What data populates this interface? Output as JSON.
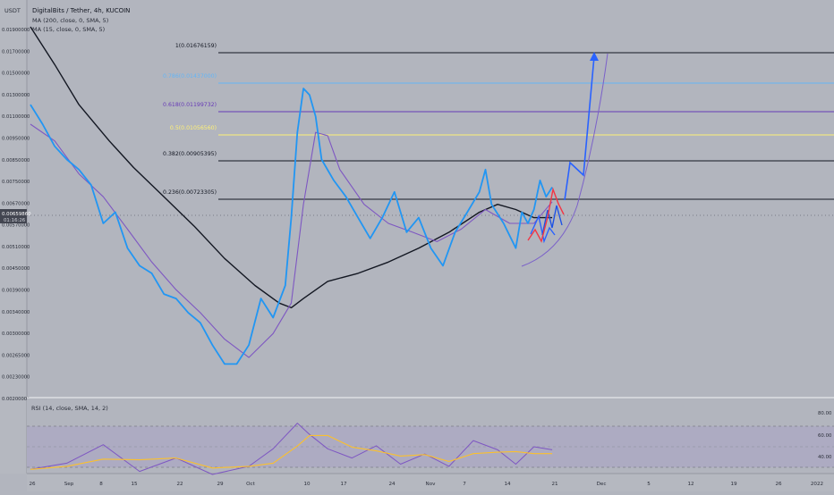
{
  "header": {
    "symbol_line": "DigitalBits / Tether, 4h, KUCOIN",
    "ma1_line": "MA (200, close, 0, SMA, 5)",
    "ma2_line": "MA (15, close, 0, SMA, 5)",
    "currency": "USDT"
  },
  "rsi": {
    "label": "RSI (14, close, SMA, 14, 2)",
    "ticks": [
      "80.00",
      "60.00",
      "40.00"
    ]
  },
  "price_axis_ticks": [
    "0.01900000",
    "0.01700000",
    "0.01500000",
    "0.01300000",
    "0.01100000",
    "0.00950000",
    "0.00850000",
    "0.00750000",
    "0.00670000",
    "0.00570000",
    "0.00510000",
    "0.00450000",
    "0.00390000",
    "0.00340000",
    "0.00300000",
    "0.00265000",
    "0.00230000",
    "0.00200000"
  ],
  "current_price": {
    "value": "0.00659860",
    "countdown": "01:16:26"
  },
  "time_axis_ticks": [
    "26",
    "Sep",
    "8",
    "15",
    "22",
    "29",
    "Oct",
    "10",
    "17",
    "24",
    "Nov",
    "7",
    "14",
    "21",
    "Dec",
    "5",
    "12",
    "19",
    "26",
    "2022"
  ],
  "fib_levels": [
    {
      "label": "1(0.01676159)",
      "color": "#131722"
    },
    {
      "label": "0.786(0.01437000)",
      "color": "#64b5f6"
    },
    {
      "label": "0.618(0.01199732)",
      "color": "#673ab7"
    },
    {
      "label": "0.5(0.01056560)",
      "color": "#fff176"
    },
    {
      "label": "0.382(0.00905395)",
      "color": "#131722"
    },
    {
      "label": "0.236(0.00723305)",
      "color": "#131722"
    }
  ],
  "colors": {
    "price": "#2196f3",
    "ma15": "#7e57c2",
    "ma200": "#131722",
    "rsi": "#7e57c2",
    "rsi_ma": "#fbc02d",
    "projection": "#2962ff",
    "red_path": "#f23645"
  },
  "chart_data": {
    "type": "line",
    "title": "DigitalBits / Tether, 4h, KUCOIN",
    "xlabel": "",
    "ylabel": "",
    "scale": "log",
    "ylim": [
      0.0021,
      0.0188
    ],
    "x_range": [
      "Aug 26",
      "Jan 2"
    ],
    "grid": false,
    "series": [
      {
        "name": "DigitalBits / Tether",
        "x": [
          "Aug 26",
          "Aug 28",
          "Aug 30",
          "Sep 1",
          "Sep 3",
          "Sep 5",
          "Sep 7",
          "Sep 9",
          "Sep 11",
          "Sep 13",
          "Sep 15",
          "Sep 17",
          "Sep 19",
          "Sep 21",
          "Sep 23",
          "Sep 25",
          "Sep 27",
          "Sep 29",
          "Oct 1",
          "Oct 3",
          "Oct 5",
          "Oct 7",
          "Oct 8",
          "Oct 9",
          "Oct 10",
          "Oct 11",
          "Oct 12",
          "Oct 13",
          "Oct 15",
          "Oct 17",
          "Oct 19",
          "Oct 21",
          "Oct 23",
          "Oct 25",
          "Oct 27",
          "Oct 29",
          "Oct 31",
          "Nov 2",
          "Nov 4",
          "Nov 6",
          "Nov 8",
          "Nov 9",
          "Nov 10",
          "Nov 12",
          "Nov 14",
          "Nov 15",
          "Nov 16",
          "Nov 17",
          "Nov 18",
          "Nov 19",
          "Nov 20"
        ],
        "values": [
          0.0118,
          0.0105,
          0.0092,
          0.0085,
          0.008,
          0.0073,
          0.0058,
          0.0062,
          0.005,
          0.0045,
          0.0043,
          0.0038,
          0.0037,
          0.0034,
          0.0032,
          0.0028,
          0.0025,
          0.0025,
          0.0028,
          0.0037,
          0.0033,
          0.004,
          0.006,
          0.01,
          0.013,
          0.0125,
          0.011,
          0.0085,
          0.0075,
          0.0068,
          0.006,
          0.0053,
          0.006,
          0.007,
          0.0055,
          0.006,
          0.005,
          0.0045,
          0.0055,
          0.0062,
          0.007,
          0.008,
          0.0065,
          0.0058,
          0.005,
          0.0062,
          0.0058,
          0.0063,
          0.0075,
          0.0068,
          0.0072
        ]
      },
      {
        "name": "MA (15)",
        "x": [
          "Aug 26",
          "Aug 30",
          "Sep 3",
          "Sep 7",
          "Sep 11",
          "Sep 15",
          "Sep 19",
          "Sep 23",
          "Sep 27",
          "Oct 1",
          "Oct 5",
          "Oct 8",
          "Oct 10",
          "Oct 12",
          "Oct 14",
          "Oct 16",
          "Oct 20",
          "Oct 24",
          "Oct 28",
          "Nov 1",
          "Nov 5",
          "Nov 9",
          "Nov 13",
          "Nov 17",
          "Nov 20"
        ],
        "values": [
          0.0105,
          0.0095,
          0.0078,
          0.0068,
          0.0056,
          0.0046,
          0.0039,
          0.0034,
          0.0029,
          0.0026,
          0.003,
          0.0036,
          0.0065,
          0.01,
          0.0098,
          0.008,
          0.0065,
          0.0058,
          0.0055,
          0.0052,
          0.0056,
          0.0063,
          0.0058,
          0.0058,
          0.0066
        ]
      },
      {
        "name": "MA (200)",
        "x": [
          "Aug 26",
          "Aug 30",
          "Sep 3",
          "Sep 8",
          "Sep 12",
          "Sep 17",
          "Sep 22",
          "Sep 27",
          "Oct 2",
          "Oct 6",
          "Oct 8",
          "Oct 10",
          "Oct 14",
          "Oct 19",
          "Oct 24",
          "Oct 29",
          "Nov 3",
          "Nov 8",
          "Nov 11",
          "Nov 14",
          "Nov 17",
          "Nov 20"
        ],
        "values": [
          0.0188,
          0.015,
          0.0118,
          0.0095,
          0.0081,
          0.0068,
          0.0057,
          0.0047,
          0.004,
          0.0036,
          0.0035,
          0.0037,
          0.0041,
          0.0043,
          0.0046,
          0.005,
          0.0055,
          0.0062,
          0.0065,
          0.0063,
          0.006,
          0.006
        ]
      },
      {
        "name": "RSI (14)",
        "x": [
          "Aug 26",
          "Sep 1",
          "Sep 7",
          "Sep 13",
          "Sep 19",
          "Sep 25",
          "Oct 1",
          "Oct 5",
          "Oct 9",
          "Oct 11",
          "Oct 14",
          "Oct 18",
          "Oct 22",
          "Oct 26",
          "Oct 30",
          "Nov 3",
          "Nov 7",
          "Nov 11",
          "Nov 14",
          "Nov 17",
          "Nov 20"
        ],
        "values": [
          38,
          44,
          62,
          36,
          49,
          33,
          41,
          58,
          83,
          72,
          58,
          49,
          61,
          43,
          53,
          41,
          66,
          57,
          43,
          60,
          57
        ]
      }
    ],
    "fibonacci": [
      {
        "ratio": 1,
        "price": 0.01676159
      },
      {
        "ratio": 0.786,
        "price": 0.01437
      },
      {
        "ratio": 0.618,
        "price": 0.01199732
      },
      {
        "ratio": 0.5,
        "price": 0.0105656
      },
      {
        "ratio": 0.382,
        "price": 0.00905395
      },
      {
        "ratio": 0.236,
        "price": 0.00723305
      }
    ]
  }
}
